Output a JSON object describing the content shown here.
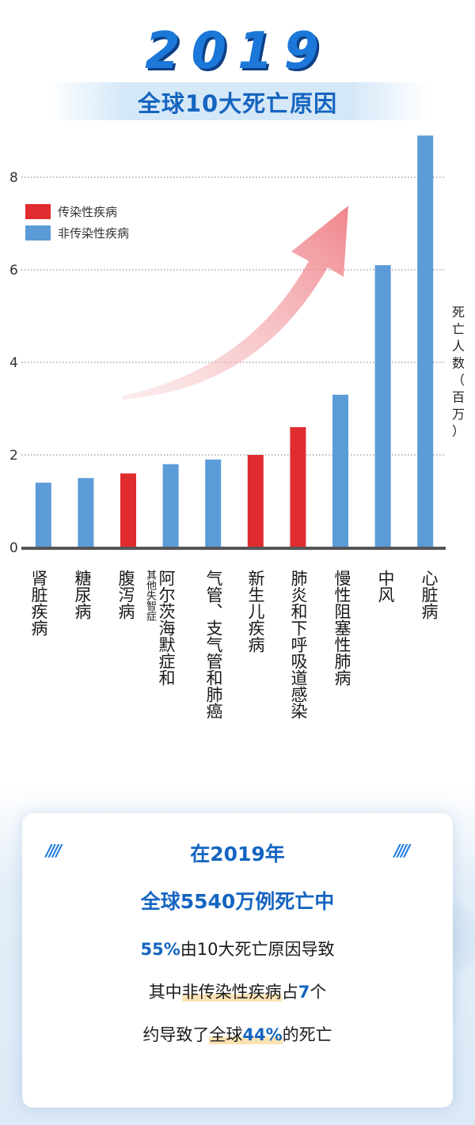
{
  "header": {
    "year": "2019",
    "subtitle": "全球10大死亡原因"
  },
  "colors": {
    "communicable": "#e02b2f",
    "noncommunicable": "#5b9bd8",
    "accent": "#1565c0"
  },
  "chart_data": {
    "type": "bar",
    "categories": [
      "肾脏疾病",
      "糖尿病",
      "腹泻病",
      "阿尔茨海默症和其他失智症",
      "气管、支气管和肺癌",
      "新生儿疾病",
      "肺炎和下呼吸道感染",
      "慢性阻塞性肺病",
      "中风",
      "心脏病"
    ],
    "values": [
      1.4,
      1.5,
      1.6,
      1.8,
      1.9,
      2.0,
      2.6,
      3.3,
      6.1,
      8.9
    ],
    "bar_groups": [
      "非传染性疾病",
      "非传染性疾病",
      "传染性疾病",
      "非传染性疾病",
      "非传染性疾病",
      "传染性疾病",
      "传染性疾病",
      "非传染性疾病",
      "非传染性疾病",
      "非传染性疾病"
    ],
    "ylabel": "死亡人数（百万）",
    "ylim": [
      0,
      9
    ],
    "yticks": [
      0,
      2,
      4,
      6,
      8
    ],
    "grid": "dotted horizontal",
    "legend": {
      "position": "top-left",
      "items": [
        {
          "label": "传染性疾病",
          "color": "#e02b2f"
        },
        {
          "label": "非传染性疾病",
          "color": "#5b9bd8"
        }
      ]
    }
  },
  "labels": {
    "cat4_main": "阿尔茨海默症和",
    "cat4_small": "其他失智症"
  },
  "summary": {
    "line1": "在2019年",
    "line2": "全球5540万例死亡中",
    "line3_hl": "55%",
    "line3_rest": "由10大死亡原因导致",
    "line4_pre": "其中",
    "line4_mid": "非传染性疾病",
    "line4_post": "占",
    "line4_hl": "7",
    "line4_end": "个",
    "line5_pre": "约导致了",
    "line5_mid": "全球",
    "line5_hl": "44%",
    "line5_end": "的死亡",
    "deco_left": "////",
    "deco_right": "////"
  }
}
